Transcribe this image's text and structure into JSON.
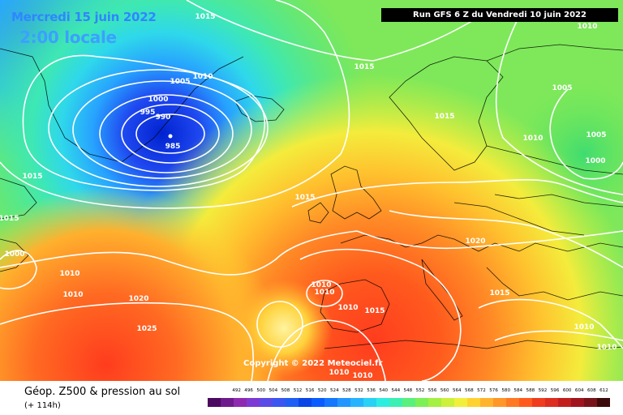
{
  "header": {
    "date_title": "Mercredi 15 juin 2022",
    "time_title": "2:00 locale",
    "run_info": "Run GFS 6 Z du Vendredi 10 juin 2022"
  },
  "map": {
    "copyright": "Copyright © 2022 Meteociel.fr",
    "isobar_labels": [
      "1015",
      "1010",
      "1005",
      "1000",
      "995",
      "990",
      "985",
      "1015",
      "1015",
      "1015",
      "1010",
      "1005",
      "1000",
      "1010",
      "1005",
      "1000",
      "1015",
      "1015",
      "1020",
      "1010",
      "1010",
      "1010",
      "1015",
      "1010",
      "1010",
      "1010",
      "1010",
      "1020",
      "1025",
      "1015",
      "1010",
      "1010"
    ]
  },
  "legend": {
    "field_title": "Géop. Z500 & pression au sol",
    "lead_time": "(+ 114h)",
    "scale_values": [
      "492",
      "496",
      "500",
      "504",
      "508",
      "512",
      "516",
      "520",
      "524",
      "528",
      "532",
      "536",
      "540",
      "544",
      "548",
      "552",
      "556",
      "560",
      "564",
      "568",
      "572",
      "576",
      "580",
      "584",
      "588",
      "592",
      "596",
      "600",
      "604",
      "608",
      "612"
    ],
    "scale_colors": [
      "#4b0a60",
      "#6e1a8c",
      "#8f2ab0",
      "#7d3ad2",
      "#5a4ae6",
      "#3a55f0",
      "#1f5ff5",
      "#0a46e6",
      "#0a5cff",
      "#1478ff",
      "#2196ff",
      "#27b4ff",
      "#27d2f5",
      "#2dede0",
      "#3cf0b4",
      "#5af07d",
      "#7df055",
      "#a5f041",
      "#cdf03c",
      "#f0f03c",
      "#ffd232",
      "#ffb42d",
      "#ff9628",
      "#ff7823",
      "#ff5a1e",
      "#f03c1e",
      "#dc2d1e",
      "#c31e1e",
      "#a0141e",
      "#781419",
      "#3c0a0a"
    ]
  }
}
